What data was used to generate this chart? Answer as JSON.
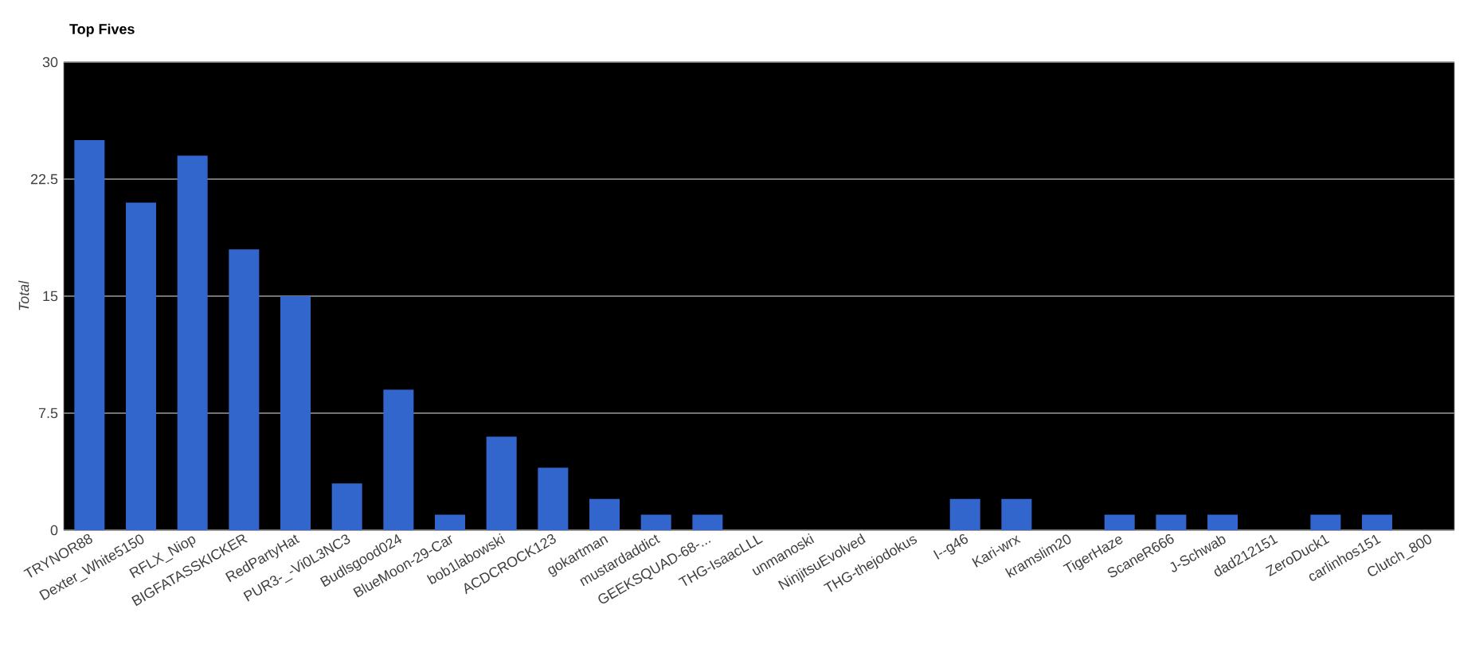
{
  "chart_data": {
    "type": "bar",
    "title": "Top Fives",
    "ylabel": "Total",
    "categories": [
      "TRYNOR88",
      "Dexter_White5150",
      "RFLX_Niop",
      "BIGFATASSKICKER",
      "RedPartyHat",
      "PUR3-_-Vi0L3NC3",
      "Budlsgood024",
      "BlueMoon-29-Car",
      "bob1labowski",
      "ACDCROCK123",
      "gokartman",
      "mustardaddict",
      "GEEKSQUAD-68-...",
      "THG-IsaacLLL",
      "unmanoski",
      "NinjitsuEvolved",
      "THG-thejodokus",
      "I--g46",
      "Kari-wrx",
      "kramslim20",
      "TigerHaze",
      "ScaneR666",
      "J-Schwab",
      "dad212151",
      "ZeroDuck1",
      "carlinhos151",
      "Clutch_800"
    ],
    "values": [
      25,
      21,
      24,
      18,
      15,
      3,
      9,
      1,
      6,
      4,
      2,
      1,
      1,
      0,
      0,
      0,
      0,
      2,
      2,
      0,
      1,
      1,
      1,
      0,
      1,
      1,
      0
    ],
    "color": "#3366cc",
    "ylim": [
      0,
      30
    ],
    "yticks": [
      0,
      7.5,
      15,
      22.5,
      30
    ],
    "grid": "y"
  }
}
